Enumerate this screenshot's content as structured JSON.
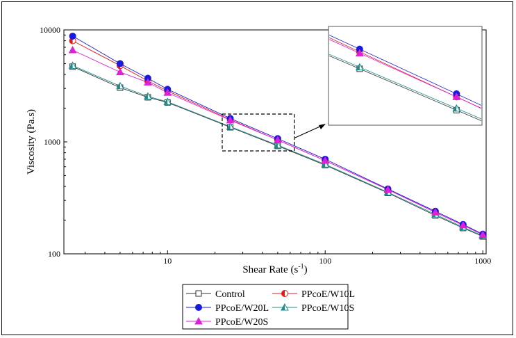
{
  "chart_data": {
    "type": "line",
    "title": "",
    "xlabel": "Shear Rate",
    "xlabel_sup": "-1",
    "xlabel_unit_open": "(s",
    "xlabel_unit_close": ")",
    "ylabel": "Viscosity (Pa.s)",
    "xscale": "log",
    "yscale": "log",
    "xlim": [
      2.2,
      1050
    ],
    "ylim": [
      100,
      10000
    ],
    "x_ticks": [
      {
        "value": 10,
        "label": "10"
      },
      {
        "value": 100,
        "label": "100"
      },
      {
        "value": 1000,
        "label": "1000"
      }
    ],
    "y_ticks": [
      {
        "value": 100,
        "label": "100"
      },
      {
        "value": 1000,
        "label": "1000"
      },
      {
        "value": 10000,
        "label": "10000"
      }
    ],
    "grid": false,
    "legend_position": "bottom-center",
    "x": [
      2.5,
      5,
      7.5,
      10,
      25,
      50,
      100,
      250,
      500,
      750,
      1000
    ],
    "series": [
      {
        "name": "Control",
        "marker": "open-square",
        "color": "#333333",
        "values": [
          4700,
          3050,
          2500,
          2250,
          1350,
          920,
          620,
          350,
          220,
          170,
          143
        ]
      },
      {
        "name": "PPcoE/W10L",
        "marker": "half-circle",
        "color": "#e11b1b",
        "values": [
          8000,
          4800,
          3500,
          2850,
          1580,
          1040,
          680,
          375,
          235,
          180,
          148
        ]
      },
      {
        "name": "PPcoE/W20L",
        "marker": "filled-circle",
        "color": "#1a1adc",
        "values": [
          8800,
          5000,
          3700,
          2950,
          1620,
          1070,
          700,
          380,
          240,
          183,
          150
        ]
      },
      {
        "name": "PPcoE/W10S",
        "marker": "half-triangle",
        "color": "#1a8c8c",
        "values": [
          4800,
          3150,
          2550,
          2280,
          1370,
          935,
          630,
          355,
          225,
          173,
          145
        ]
      },
      {
        "name": "PPcoE/W20S",
        "marker": "filled-triangle",
        "color": "#e020d8",
        "values": [
          6600,
          4200,
          3400,
          2750,
          1560,
          1040,
          680,
          375,
          235,
          180,
          148
        ]
      }
    ],
    "inset": {
      "description_region": "zoom of x 20–60",
      "xlim": [
        20,
        60
      ]
    }
  }
}
